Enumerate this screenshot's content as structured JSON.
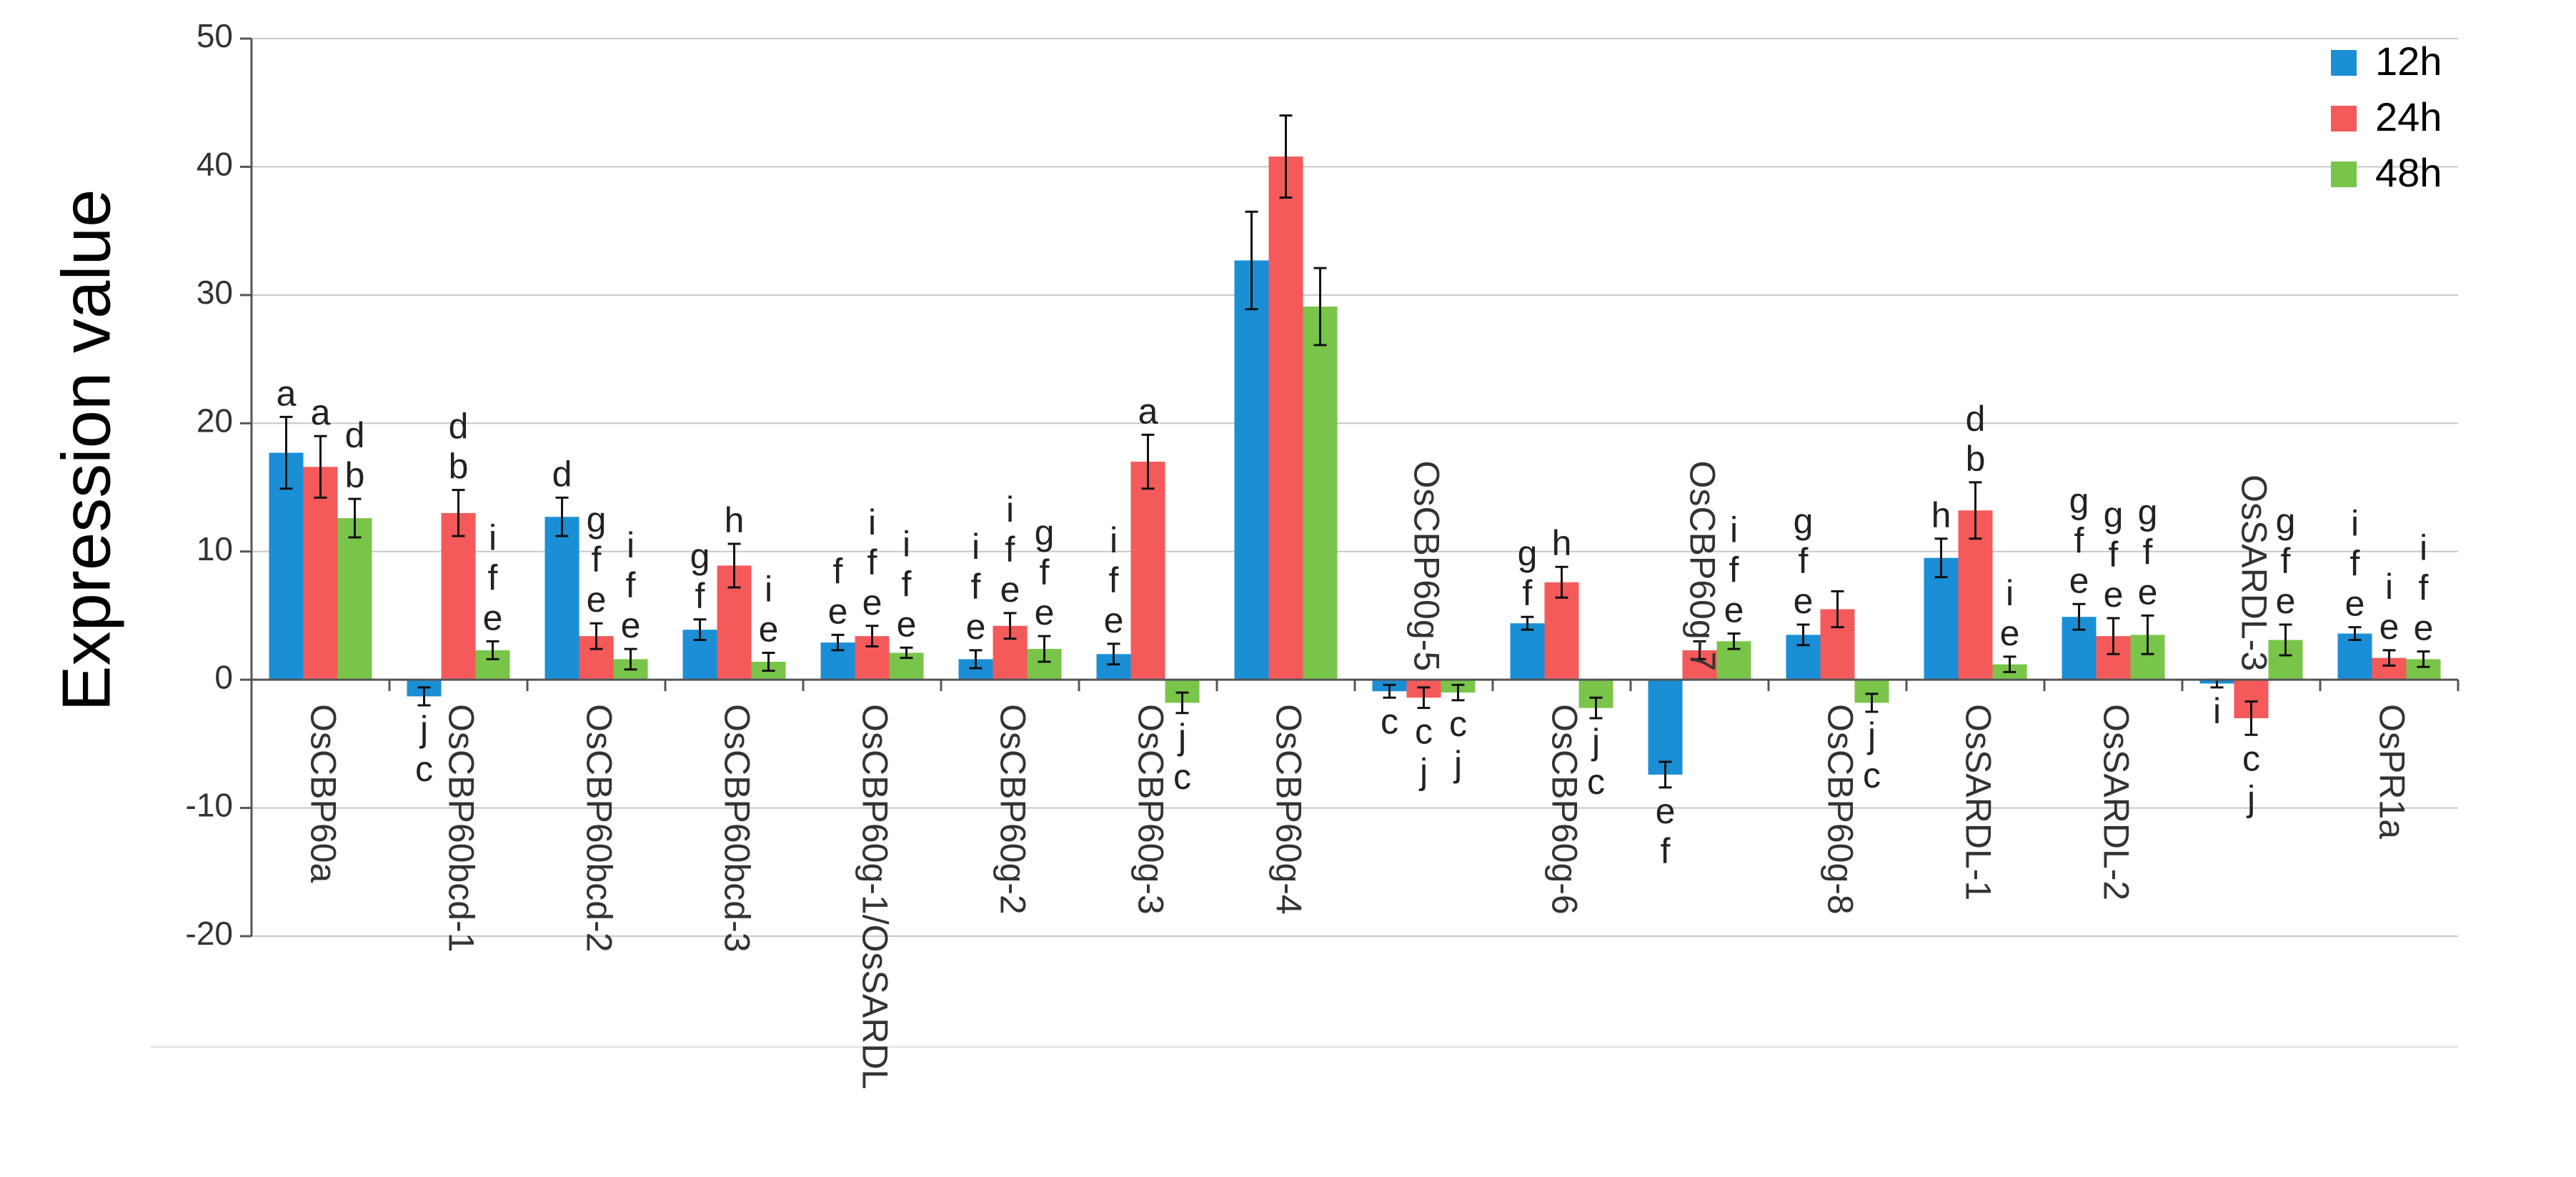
{
  "colors": {
    "12h": "#1a8fd6",
    "24h": "#f45a5a",
    "48h": "#79c54a",
    "grid": "#c8c8c8",
    "axis": "#555555"
  },
  "chart_data": {
    "type": "bar",
    "title": "",
    "xlabel": "",
    "ylabel": "Expression value",
    "ylim": [
      -20,
      50
    ],
    "yticks": [
      "-20",
      "-10",
      "0",
      "10",
      "20",
      "30",
      "40",
      "50"
    ],
    "legend_position": "top-right",
    "grid": true,
    "categories": [
      "OsCBP60a",
      "OsCBP60bcd-1",
      "OsCBP60bcd-2",
      "OsCBP60bcd-3",
      "OsCBP60g-1/OsSARDL",
      "OsCBP60g-2",
      "OsCBP60g-3",
      "OsCBP60g-4",
      "OsCBP60g-5",
      "OsCBP60g-6",
      "OsCBP60g-7",
      "OsCBP60g-8",
      "OsSARDL-1",
      "OsSARDL-2",
      "OsSARDL-3",
      "OsPR1a"
    ],
    "label_side": [
      "below",
      "below",
      "below",
      "below",
      "below",
      "below",
      "below",
      "below",
      "above",
      "below",
      "above",
      "below",
      "below",
      "below",
      "above",
      "below"
    ],
    "series": [
      {
        "name": "12h",
        "values": [
          17.7,
          -1.3,
          12.7,
          3.9,
          2.9,
          1.6,
          2.0,
          32.7,
          -0.9,
          4.4,
          -7.4,
          3.5,
          9.5,
          4.9,
          -0.3,
          3.6
        ],
        "errors": [
          2.8,
          0.7,
          1.5,
          0.8,
          0.6,
          0.7,
          0.8,
          3.8,
          0.5,
          0.5,
          1.0,
          0.8,
          1.5,
          1.0,
          0.3,
          0.5
        ],
        "letters": [
          [
            "a"
          ],
          [
            "j",
            "c"
          ],
          [
            "d"
          ],
          [
            "g",
            "f"
          ],
          [
            "f",
            "e"
          ],
          [
            "i",
            "f",
            "e"
          ],
          [
            "i",
            "f",
            "e"
          ],
          [],
          [
            "c"
          ],
          [
            "g",
            "f"
          ],
          [
            "e",
            "f"
          ],
          [
            "g",
            "f",
            "e"
          ],
          [
            "h"
          ],
          [
            "g",
            "f",
            "e"
          ],
          [
            "i"
          ],
          [
            "i",
            "f",
            "e"
          ]
        ]
      },
      {
        "name": "24h",
        "values": [
          16.6,
          13.0,
          3.4,
          8.9,
          3.4,
          4.2,
          17.0,
          40.8,
          -1.4,
          7.6,
          2.3,
          5.5,
          13.2,
          3.4,
          -3.0,
          1.7
        ],
        "errors": [
          2.4,
          1.8,
          1.0,
          1.7,
          0.8,
          1.0,
          2.1,
          3.2,
          0.8,
          1.2,
          0.7,
          1.4,
          2.2,
          1.4,
          1.3,
          0.6
        ],
        "letters": [
          [
            "a"
          ],
          [
            "d",
            "b"
          ],
          [
            "g",
            "f",
            "e"
          ],
          [
            "h"
          ],
          [
            "i",
            "f",
            "e"
          ],
          [
            "i",
            "f",
            "e"
          ],
          [
            "a"
          ],
          [],
          [
            "c",
            "j"
          ],
          [
            "h"
          ],
          [],
          [],
          [
            "d",
            "b"
          ],
          [
            "g",
            "f",
            "e"
          ],
          [
            "c",
            "j"
          ],
          [
            "i",
            "e"
          ]
        ]
      },
      {
        "name": "48h",
        "values": [
          12.6,
          2.3,
          1.6,
          1.4,
          2.1,
          2.4,
          -1.8,
          29.1,
          -1.0,
          -2.2,
          3.0,
          -1.8,
          1.2,
          3.5,
          3.1,
          1.6
        ],
        "errors": [
          1.5,
          0.7,
          0.8,
          0.7,
          0.4,
          1.0,
          0.8,
          3.0,
          0.6,
          0.8,
          0.6,
          0.7,
          0.6,
          1.5,
          1.2,
          0.6
        ],
        "letters": [
          [
            "d",
            "b"
          ],
          [
            "i",
            "f",
            "e"
          ],
          [
            "i",
            "f",
            "e"
          ],
          [
            "i",
            "e"
          ],
          [
            "i",
            "f",
            "e"
          ],
          [
            "g",
            "f",
            "e"
          ],
          [
            "j",
            "c"
          ],
          [],
          [
            "c",
            "j"
          ],
          [
            "j",
            "c"
          ],
          [
            "i",
            "f",
            "e"
          ],
          [
            "j",
            "c"
          ],
          [
            "i",
            "e"
          ],
          [
            "g",
            "f",
            "e"
          ],
          [
            "g",
            "f",
            "e"
          ],
          [
            "i",
            "f",
            "e"
          ]
        ]
      }
    ]
  }
}
